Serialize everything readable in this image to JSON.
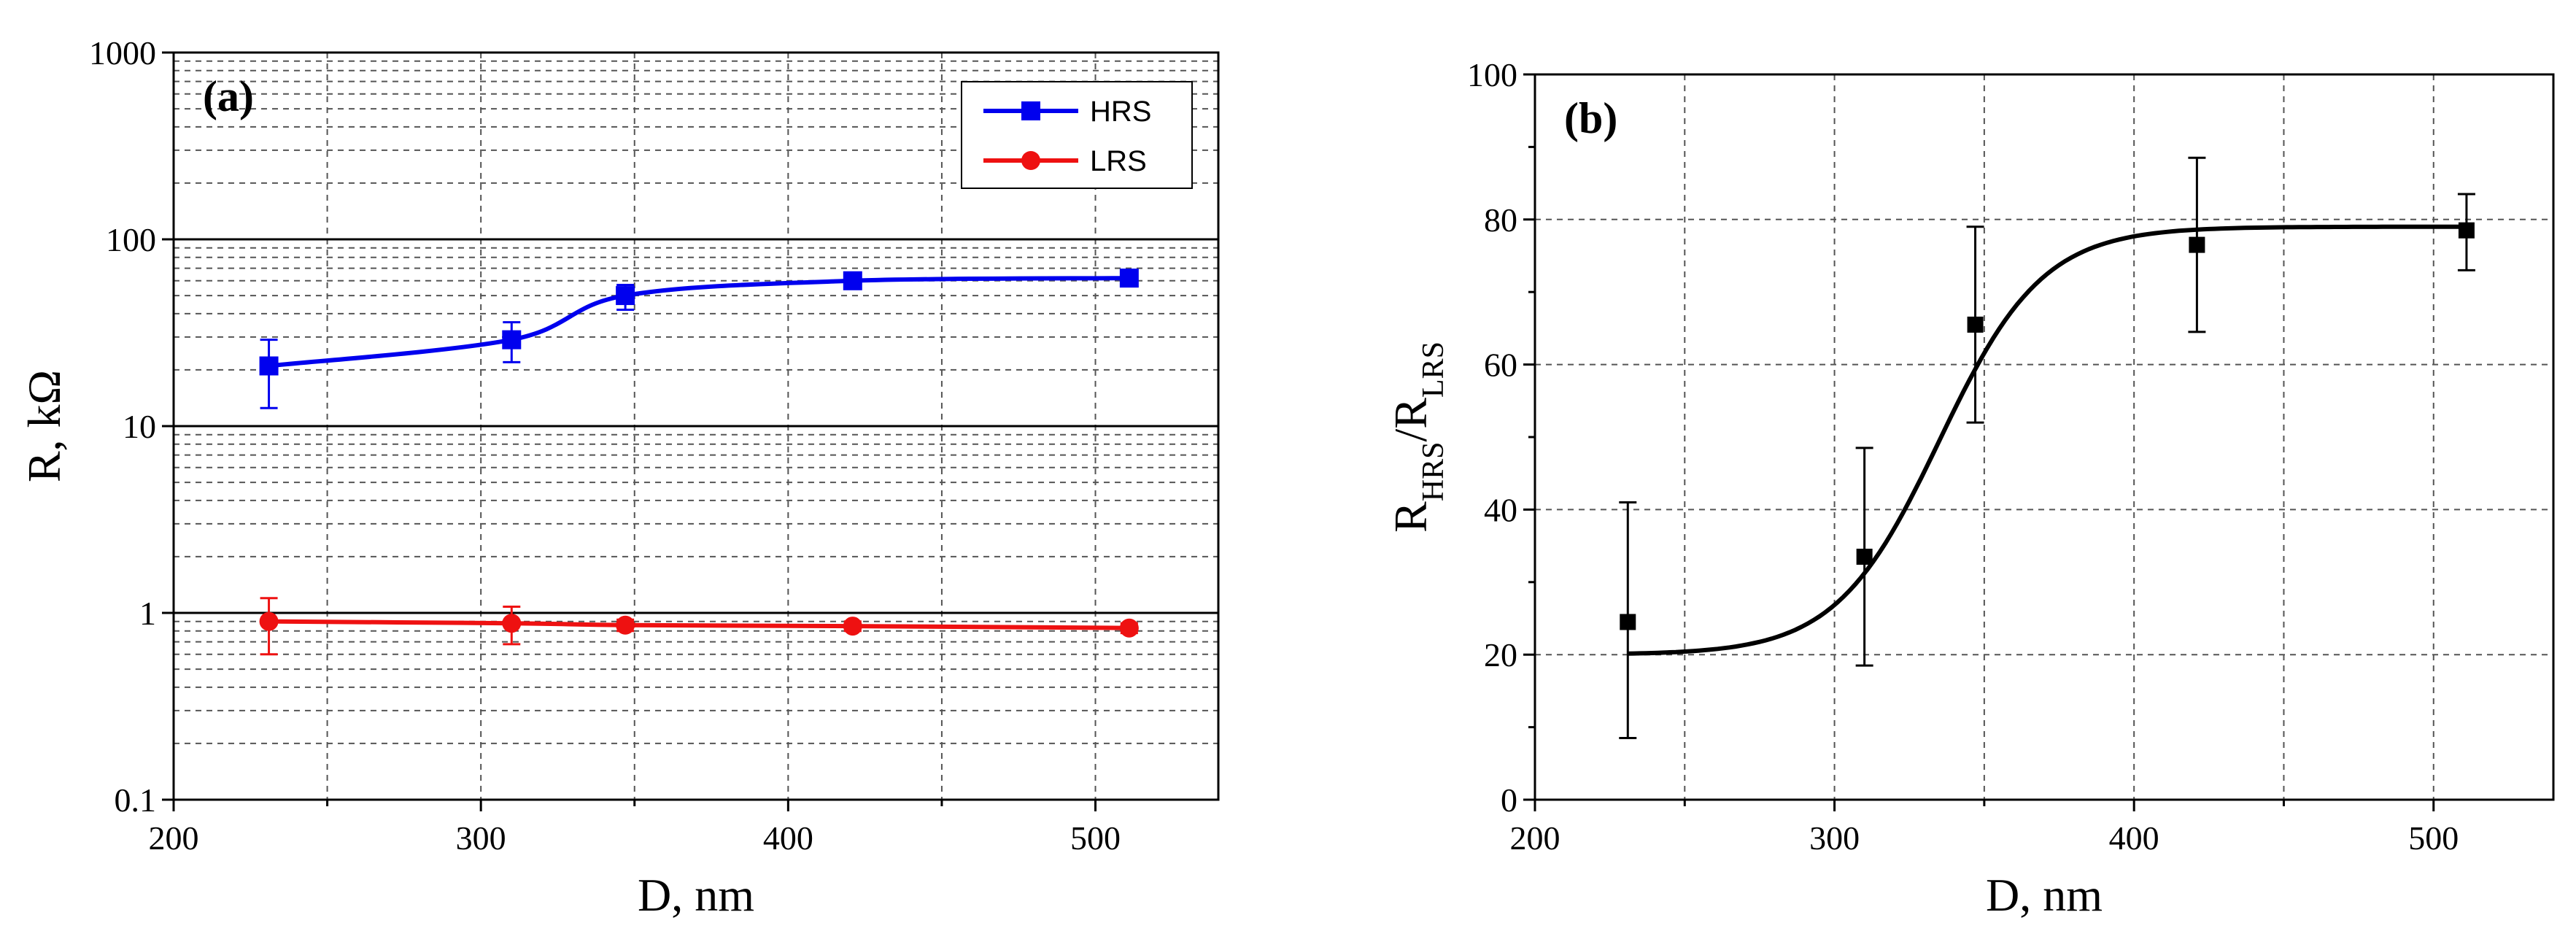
{
  "chart_data": [
    {
      "type": "line",
      "panel_label": "(a)",
      "xlabel": "D, nm",
      "ylabel": "R, kΩ",
      "xlim": [
        200,
        540
      ],
      "ylim": [
        0.1,
        1000
      ],
      "yscale": "log",
      "x_ticks": [
        "200",
        "300",
        "400",
        "500"
      ],
      "y_ticks": [
        "0.1",
        "1",
        "10",
        "100",
        "1000"
      ],
      "grid": true,
      "legend_position": "top-right",
      "series": [
        {
          "name": "HRS",
          "color": "#0000ee",
          "marker": "square",
          "x": [
            231,
            310,
            347,
            421,
            511
          ],
          "y": [
            21,
            29,
            50,
            60,
            62
          ],
          "err_low": [
            12.5,
            22,
            42,
            55,
            58
          ],
          "err_high": [
            29,
            36,
            57,
            65,
            67
          ],
          "fit_curve": true
        },
        {
          "name": "LRS",
          "color": "#ee1111",
          "marker": "circle",
          "x": [
            231,
            310,
            347,
            421,
            511
          ],
          "y": [
            0.9,
            0.88,
            0.86,
            0.85,
            0.83
          ],
          "err_low": [
            0.6,
            0.68,
            0.8,
            0.8,
            0.78
          ],
          "err_high": [
            1.2,
            1.08,
            0.92,
            0.9,
            0.88
          ],
          "fit_curve": true
        }
      ]
    },
    {
      "type": "scatter",
      "panel_label": "(b)",
      "xlabel": "D, nm",
      "ylabel_main": "R",
      "ylabel_sub1": "HRS",
      "ylabel_mid": "/R",
      "ylabel_sub2": "LRS",
      "xlim": [
        200,
        540
      ],
      "ylim": [
        0,
        100
      ],
      "x_ticks": [
        "200",
        "300",
        "400",
        "500"
      ],
      "y_ticks": [
        "0",
        "20",
        "40",
        "60",
        "80",
        "100"
      ],
      "grid": true,
      "series": [
        {
          "name": "R_HRS/R_LRS",
          "color": "#000000",
          "marker": "square",
          "x": [
            231,
            310,
            347,
            421,
            511
          ],
          "y": [
            24.5,
            33.5,
            65.5,
            76.5,
            78.5
          ],
          "err_low": [
            8.5,
            18.5,
            52,
            64.5,
            73
          ],
          "err_high": [
            41,
            48.5,
            79,
            88.5,
            83.5
          ],
          "fit": {
            "kind": "sigmoid",
            "bottom": 20,
            "top": 79,
            "x0": 335,
            "k": 0.058
          }
        }
      ]
    }
  ]
}
